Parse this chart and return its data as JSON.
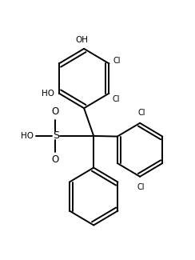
{
  "background_color": "#ffffff",
  "line_color": "#000000",
  "line_width": 1.4,
  "fig_width": 2.44,
  "fig_height": 3.25,
  "dpi": 100,
  "xlim": [
    0,
    10
  ],
  "ylim": [
    0,
    13
  ]
}
